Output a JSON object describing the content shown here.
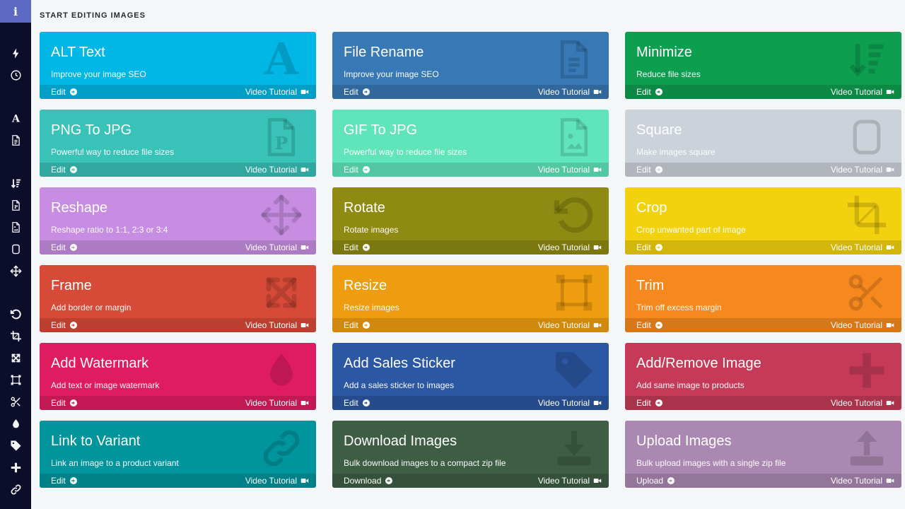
{
  "sidebar": {
    "top_icon": "info",
    "groups": [
      [
        "zap",
        "history"
      ],
      [
        "letter-a",
        "file-text"
      ],
      [
        "sort-amount-down",
        "file-p",
        "file-image",
        "square",
        "move"
      ],
      [
        "rotate-ccw",
        "crop",
        "expand-arrows",
        "vector-square",
        "scissors",
        "droplet",
        "tag",
        "plus",
        "link"
      ]
    ]
  },
  "header": {
    "title": "START EDITING IMAGES"
  },
  "colors": {
    "sidebar_bg": "#0b0d2b",
    "sidebar_active_tile": "#5c6ac4",
    "page_bg": "#f4f6f8",
    "heading_text": "#262b31"
  },
  "cards": [
    {
      "title": "ALT Text",
      "subtitle": "Improve your image SEO",
      "action_label": "Edit",
      "video_label": "Video Tutorial",
      "icon": "letter-a",
      "color": "#00b7e5"
    },
    {
      "title": "File Rename",
      "subtitle": "Improve your image SEO",
      "action_label": "Edit",
      "video_label": "Video Tutorial",
      "icon": "file-text",
      "color": "#3878b4"
    },
    {
      "title": "Minimize",
      "subtitle": "Reduce file sizes",
      "action_label": "Edit",
      "video_label": "Video Tutorial",
      "icon": "sort-amount-down",
      "color": "#0d9e50"
    },
    {
      "title": "PNG To JPG",
      "subtitle": "Powerful way to reduce file sizes",
      "action_label": "Edit",
      "video_label": "Video Tutorial",
      "icon": "file-p",
      "color": "#38c2b8"
    },
    {
      "title": "GIF To JPG",
      "subtitle": "Powerful way to reduce file sizes",
      "action_label": "Edit",
      "video_label": "Video Tutorial",
      "icon": "file-image",
      "color": "#60e5ba"
    },
    {
      "title": "Square",
      "subtitle": "Make images square",
      "action_label": "Edit",
      "video_label": "Video Tutorial",
      "icon": "square",
      "color": "#ccd2d9"
    },
    {
      "title": "Reshape",
      "subtitle": "Reshape ratio to 1:1, 2:3 or 3:4",
      "action_label": "Edit",
      "video_label": "Video Tutorial",
      "icon": "move",
      "color": "#c78de2"
    },
    {
      "title": "Rotate",
      "subtitle": "Rotate images",
      "action_label": "Edit",
      "video_label": "Video Tutorial",
      "icon": "rotate-ccw",
      "color": "#8e8a12"
    },
    {
      "title": "Crop",
      "subtitle": "Crop unwanted part of image",
      "action_label": "Edit",
      "video_label": "Video Tutorial",
      "icon": "crop",
      "color": "#f2d20e"
    },
    {
      "title": "Frame",
      "subtitle": "Add border or margin",
      "action_label": "Edit",
      "video_label": "Video Tutorial",
      "icon": "expand-arrows",
      "color": "#d84a38"
    },
    {
      "title": "Resize",
      "subtitle": "Resize images",
      "action_label": "Edit",
      "video_label": "Video Tutorial",
      "icon": "vector-square",
      "color": "#ef9d10"
    },
    {
      "title": "Trim",
      "subtitle": "Trim off excess margin",
      "action_label": "Edit",
      "video_label": "Video Tutorial",
      "icon": "scissors",
      "color": "#f6891e"
    },
    {
      "title": "Add Watermark",
      "subtitle": "Add text or image watermark",
      "action_label": "Edit",
      "video_label": "Video Tutorial",
      "icon": "droplet",
      "color": "#e01c60"
    },
    {
      "title": "Add Sales Sticker",
      "subtitle": "Add a sales sticker to images",
      "action_label": "Edit",
      "video_label": "Video Tutorial",
      "icon": "tag",
      "color": "#2b57a3"
    },
    {
      "title": "Add/Remove Image",
      "subtitle": "Add same image to products",
      "action_label": "Edit",
      "video_label": "Video Tutorial",
      "icon": "plus",
      "color": "#c43a57"
    },
    {
      "title": "Link to Variant",
      "subtitle": "Link an image to a product variant",
      "action_label": "Edit",
      "video_label": "Video Tutorial",
      "icon": "link",
      "color": "#00959d"
    },
    {
      "title": "Download Images",
      "subtitle": "Bulk download images to a compact zip file",
      "action_label": "Download",
      "video_label": "Video Tutorial",
      "icon": "download",
      "color": "#3e5e44"
    },
    {
      "title": "Upload Images",
      "subtitle": "Bulk upload images with a single zip file",
      "action_label": "Upload",
      "video_label": "Video Tutorial",
      "icon": "upload",
      "color": "#ab88b1"
    }
  ]
}
